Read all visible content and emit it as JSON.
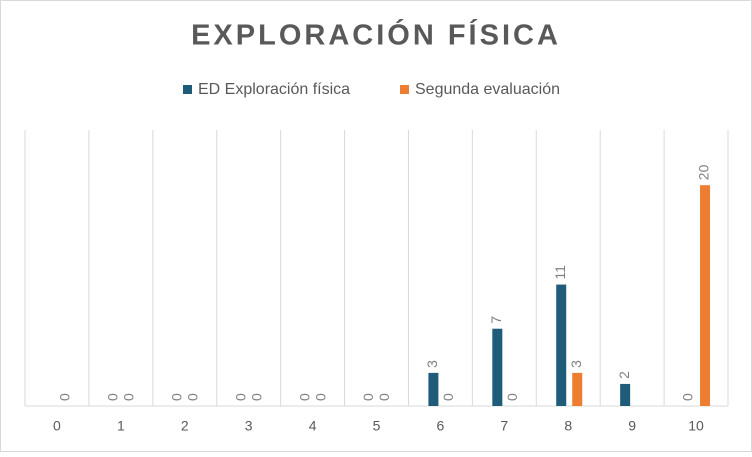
{
  "chart_data": {
    "type": "bar",
    "title": "EXPLORACIÓN FÍSICA",
    "categories": [
      "0",
      "1",
      "2",
      "3",
      "4",
      "5",
      "6",
      "7",
      "8",
      "9",
      "10"
    ],
    "series": [
      {
        "name": "ED Exploración física",
        "color": "#1f5c7a",
        "values": [
          null,
          0,
          0,
          0,
          0,
          0,
          3,
          7,
          11,
          2,
          0
        ]
      },
      {
        "name": "Segunda evaluación",
        "color": "#ed7d31",
        "values": [
          0,
          0,
          0,
          0,
          0,
          0,
          0,
          0,
          3,
          null,
          20
        ]
      }
    ],
    "ylim": [
      0,
      25
    ],
    "legend": "top"
  }
}
